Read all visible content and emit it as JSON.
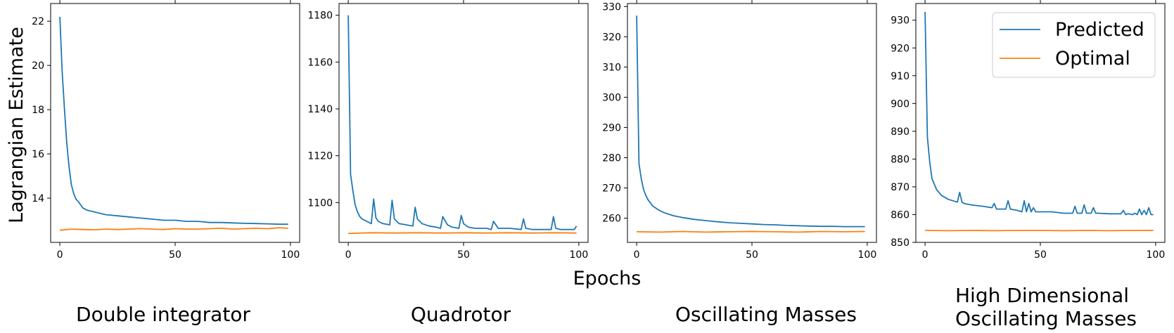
{
  "figure": {
    "ylabel": "Lagrangian Estimate",
    "xlabel": "Epochs",
    "legend": {
      "placement": "top-right of last panel",
      "entries": [
        {
          "label": "Predicted",
          "color": "#1f77b4"
        },
        {
          "label": "Optimal",
          "color": "#ff7f0e"
        }
      ]
    }
  },
  "chart_data": [
    {
      "type": "line",
      "subtitle": "Double integrator",
      "xlim": [
        -4,
        104
      ],
      "ylim": [
        12.0,
        22.8
      ],
      "xticks": [
        0,
        50,
        100
      ],
      "yticks": [
        14,
        16,
        18,
        20,
        22
      ],
      "series": [
        {
          "name": "Predicted",
          "color": "#1f77b4",
          "x": [
            0,
            1,
            2,
            3,
            4,
            5,
            6,
            7,
            8,
            9,
            10,
            12,
            14,
            16,
            18,
            20,
            25,
            30,
            35,
            40,
            45,
            50,
            55,
            60,
            65,
            70,
            75,
            80,
            85,
            90,
            95,
            99
          ],
          "y": [
            22.2,
            19.7,
            18.0,
            16.5,
            15.4,
            14.6,
            14.2,
            13.95,
            13.85,
            13.7,
            13.55,
            13.45,
            13.4,
            13.35,
            13.3,
            13.25,
            13.2,
            13.15,
            13.1,
            13.05,
            13.0,
            13.0,
            12.95,
            12.95,
            12.9,
            12.9,
            12.88,
            12.86,
            12.85,
            12.84,
            12.82,
            12.82
          ]
        },
        {
          "name": "Optimal",
          "color": "#ff7f0e",
          "x": [
            0,
            5,
            10,
            15,
            20,
            25,
            30,
            35,
            40,
            45,
            50,
            55,
            60,
            65,
            70,
            75,
            80,
            85,
            90,
            95,
            99
          ],
          "y": [
            12.55,
            12.6,
            12.58,
            12.57,
            12.6,
            12.58,
            12.6,
            12.62,
            12.6,
            12.58,
            12.62,
            12.6,
            12.6,
            12.62,
            12.64,
            12.6,
            12.62,
            12.64,
            12.62,
            12.66,
            12.64
          ]
        }
      ]
    },
    {
      "type": "line",
      "subtitle": "Quadrotor",
      "xlim": [
        -4,
        104
      ],
      "ylim": [
        1083,
        1185
      ],
      "xticks": [
        0,
        50,
        100
      ],
      "yticks": [
        1100,
        1120,
        1140,
        1160,
        1180
      ],
      "series": [
        {
          "name": "Predicted",
          "color": "#1f77b4",
          "x": [
            0,
            1,
            2,
            3,
            4,
            5,
            6,
            7,
            8,
            9,
            10,
            11,
            12,
            13,
            15,
            18,
            19,
            20,
            22,
            25,
            28,
            29,
            30,
            32,
            35,
            38,
            40,
            41,
            43,
            45,
            48,
            49,
            50,
            52,
            55,
            58,
            60,
            62,
            63,
            65,
            70,
            75,
            76,
            77,
            80,
            85,
            88,
            89,
            90,
            92,
            95,
            98,
            99
          ],
          "y": [
            1180,
            1112,
            1105,
            1099,
            1096,
            1094,
            1093,
            1092.5,
            1092,
            1091.5,
            1091,
            1101.5,
            1093.5,
            1092,
            1091,
            1090.5,
            1101,
            1093,
            1091,
            1090.5,
            1090,
            1098,
            1093,
            1091,
            1090,
            1089.5,
            1089,
            1094,
            1090.5,
            1089.5,
            1089,
            1094.5,
            1091,
            1089.5,
            1089,
            1089,
            1089,
            1088.5,
            1092,
            1089,
            1089,
            1088.5,
            1093,
            1089,
            1088.5,
            1088.5,
            1088.5,
            1094,
            1089,
            1088.5,
            1088.5,
            1088.5,
            1090
          ]
        },
        {
          "name": "Optimal",
          "color": "#ff7f0e",
          "x": [
            0,
            10,
            20,
            30,
            40,
            50,
            60,
            70,
            80,
            90,
            99
          ],
          "y": [
            1086.8,
            1087.1,
            1087.0,
            1087.1,
            1087.0,
            1087.1,
            1087.0,
            1087.1,
            1087.0,
            1087.1,
            1087.0
          ]
        }
      ]
    },
    {
      "type": "line",
      "subtitle": "Oscillating Masses",
      "xlim": [
        -4,
        104
      ],
      "ylim": [
        252,
        331
      ],
      "xticks": [
        0,
        50,
        100
      ],
      "yticks": [
        260,
        270,
        280,
        290,
        300,
        310,
        320,
        330
      ],
      "series": [
        {
          "name": "Predicted",
          "color": "#1f77b4",
          "x": [
            0,
            1,
            2,
            3,
            4,
            5,
            6,
            7,
            8,
            9,
            10,
            12,
            14,
            16,
            18,
            20,
            25,
            30,
            35,
            40,
            45,
            50,
            55,
            60,
            65,
            70,
            75,
            80,
            85,
            90,
            95,
            99
          ],
          "y": [
            327,
            278,
            273,
            269.5,
            267.5,
            266,
            265,
            264,
            263.5,
            263,
            262.5,
            261.8,
            261.3,
            260.8,
            260.5,
            260.2,
            259.6,
            259.2,
            258.8,
            258.5,
            258.3,
            258.1,
            257.9,
            257.8,
            257.6,
            257.5,
            257.4,
            257.3,
            257.3,
            257.2,
            257.2,
            257.2
          ]
        },
        {
          "name": "Optimal",
          "color": "#ff7f0e",
          "x": [
            0,
            10,
            20,
            30,
            40,
            50,
            60,
            70,
            80,
            90,
            99
          ],
          "y": [
            255.5,
            255.4,
            255.6,
            255.4,
            255.5,
            255.6,
            255.5,
            255.4,
            255.6,
            255.5,
            255.6
          ]
        }
      ]
    },
    {
      "type": "line",
      "subtitle": "High Dimensional Oscillating Masses",
      "xlim": [
        -4,
        104
      ],
      "ylim": [
        850,
        936
      ],
      "xticks": [
        0,
        50,
        100
      ],
      "yticks": [
        850,
        860,
        870,
        880,
        890,
        900,
        910,
        920,
        930
      ],
      "series": [
        {
          "name": "Predicted",
          "color": "#1f77b4",
          "x": [
            0,
            1,
            2,
            3,
            4,
            5,
            6,
            7,
            8,
            9,
            10,
            12,
            14,
            15,
            16,
            17,
            20,
            25,
            29,
            30,
            31,
            35,
            36,
            37,
            40,
            42,
            43,
            44,
            45,
            46,
            47,
            48,
            50,
            55,
            60,
            64,
            65,
            66,
            67,
            68,
            69,
            70,
            72,
            73,
            74,
            75,
            80,
            85,
            86,
            87,
            88,
            90,
            91,
            92,
            93,
            94,
            95,
            96,
            97,
            98,
            99
          ],
          "y": [
            933,
            888,
            879,
            873,
            871,
            869,
            868,
            867,
            866.5,
            866,
            865.5,
            865,
            864.5,
            868,
            864.5,
            864,
            863.5,
            863,
            862.5,
            864,
            862,
            862,
            865,
            862,
            861.5,
            861,
            865,
            861,
            864,
            861,
            862.5,
            861,
            861,
            861,
            860.5,
            860.5,
            863,
            860.5,
            860.5,
            860.5,
            863.5,
            860.5,
            860.5,
            862.5,
            860.5,
            860.5,
            860.3,
            860.3,
            861.5,
            860,
            860.3,
            860,
            860.5,
            860,
            862,
            860,
            861.5,
            860,
            862.5,
            860,
            860
          ]
        },
        {
          "name": "Optimal",
          "color": "#ff7f0e",
          "x": [
            0,
            10,
            20,
            30,
            40,
            50,
            60,
            70,
            80,
            90,
            99
          ],
          "y": [
            854.3,
            854.2,
            854.3,
            854.2,
            854.3,
            854.3,
            854.2,
            854.3,
            854.2,
            854.3,
            854.3
          ]
        }
      ]
    }
  ]
}
